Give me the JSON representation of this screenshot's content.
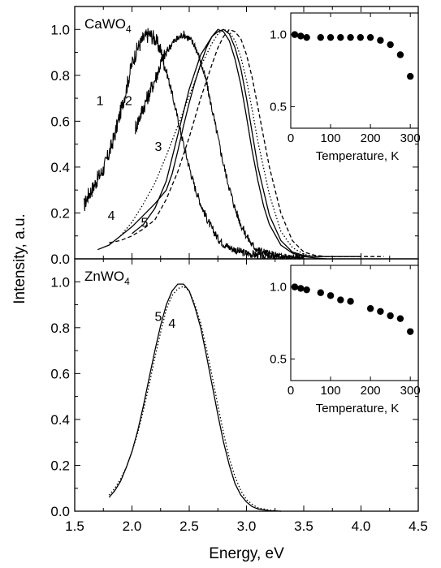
{
  "chart_data": {
    "type": "line",
    "xlabel": "Energy, eV",
    "ylabel": "Intensity, a.u.",
    "xlim": [
      1.5,
      4.5
    ],
    "x_ticks": [
      "1.5",
      "2.0",
      "2.5",
      "3.0",
      "3.5",
      "4.0",
      "4.5"
    ],
    "grid": false,
    "panels": [
      {
        "sample": "CaWO",
        "sample_sub": "4",
        "ylim": [
          0,
          1.1
        ],
        "y_ticks": [
          "0.0",
          "0.2",
          "0.4",
          "0.6",
          "0.8",
          "1.0"
        ],
        "series": [
          {
            "label": "1",
            "style": "noisy",
            "x": [
              1.58,
              1.62,
              1.66,
              1.7,
              1.75,
              1.8,
              1.85,
              1.9,
              1.95,
              2.0,
              2.05,
              2.1,
              2.15,
              2.2,
              2.25,
              2.3,
              2.35,
              2.4,
              2.45,
              2.5,
              2.55,
              2.6,
              2.65,
              2.7,
              2.75,
              2.8,
              2.85,
              2.9,
              2.95,
              3.0,
              3.1,
              3.2,
              3.3,
              3.4,
              3.5
            ],
            "y": [
              0.23,
              0.28,
              0.31,
              0.35,
              0.39,
              0.46,
              0.54,
              0.64,
              0.74,
              0.85,
              0.92,
              0.96,
              0.98,
              0.96,
              0.91,
              0.82,
              0.72,
              0.61,
              0.5,
              0.4,
              0.31,
              0.24,
              0.18,
              0.13,
              0.09,
              0.065,
              0.05,
              0.04,
              0.03,
              0.025,
              0.015,
              0.01,
              0.005,
              0.003,
              0.0
            ]
          },
          {
            "label": "2",
            "style": "noisy",
            "x": [
              2.03,
              2.06,
              2.1,
              2.15,
              2.2,
              2.25,
              2.3,
              2.35,
              2.4,
              2.45,
              2.5,
              2.55,
              2.6,
              2.65,
              2.7,
              2.75,
              2.8,
              2.85,
              2.9,
              2.95,
              3.0,
              3.05,
              3.1,
              3.2,
              3.3,
              3.4,
              3.5
            ],
            "y": [
              0.57,
              0.61,
              0.66,
              0.72,
              0.78,
              0.85,
              0.9,
              0.94,
              0.96,
              0.98,
              0.96,
              0.93,
              0.86,
              0.77,
              0.65,
              0.53,
              0.41,
              0.31,
              0.22,
              0.15,
              0.1,
              0.06,
              0.04,
              0.02,
              0.01,
              0.005,
              0.0
            ]
          },
          {
            "label": "3",
            "style": "solid",
            "x": [
              2.0,
              2.1,
              2.2,
              2.3,
              2.4,
              2.5,
              2.6,
              2.7,
              2.75,
              2.8,
              2.85,
              2.9,
              2.95,
              3.0,
              3.05,
              3.1,
              3.15,
              3.2,
              3.3,
              3.4,
              3.5,
              3.6,
              3.7
            ],
            "y": [
              0.11,
              0.15,
              0.22,
              0.34,
              0.54,
              0.74,
              0.89,
              0.97,
              1.0,
              0.99,
              0.95,
              0.87,
              0.76,
              0.62,
              0.47,
              0.34,
              0.23,
              0.15,
              0.06,
              0.025,
              0.01,
              0.004,
              0.0
            ]
          },
          {
            "label": "4",
            "style": "solid",
            "x": [
              1.7,
              1.8,
              1.9,
              2.0,
              2.1,
              2.2,
              2.25,
              2.3,
              2.35,
              2.4,
              2.45,
              2.5,
              2.55,
              2.6,
              2.65,
              2.7,
              2.75,
              2.8,
              2.85,
              2.9,
              2.95,
              3.0,
              3.05,
              3.1,
              3.2,
              3.3,
              3.4,
              3.5,
              3.6,
              3.7,
              3.8,
              3.9,
              4.0
            ],
            "y": [
              0.04,
              0.06,
              0.1,
              0.14,
              0.19,
              0.24,
              0.27,
              0.3,
              0.37,
              0.47,
              0.58,
              0.68,
              0.77,
              0.85,
              0.92,
              0.97,
              0.99,
              1.0,
              0.98,
              0.92,
              0.83,
              0.7,
              0.55,
              0.4,
              0.19,
              0.08,
              0.03,
              0.015,
              0.01,
              0.01,
              0.01,
              0.01,
              0.01
            ]
          },
          {
            "label": "5",
            "style": "dashed",
            "x": [
              1.8,
              1.9,
              2.0,
              2.1,
              2.2,
              2.3,
              2.4,
              2.5,
              2.6,
              2.7,
              2.75,
              2.8,
              2.85,
              2.9,
              2.95,
              3.0,
              3.05,
              3.1,
              3.15,
              3.2,
              3.3,
              3.4,
              3.5,
              3.6,
              3.7,
              3.8,
              4.0,
              4.2
            ],
            "y": [
              0.07,
              0.08,
              0.1,
              0.13,
              0.17,
              0.26,
              0.38,
              0.53,
              0.7,
              0.85,
              0.92,
              0.97,
              1.0,
              0.99,
              0.96,
              0.89,
              0.79,
              0.66,
              0.53,
              0.4,
              0.2,
              0.08,
              0.03,
              0.015,
              0.01,
              0.01,
              0.01,
              0.01
            ]
          },
          {
            "label": "",
            "style": "dotted",
            "x": [
              1.9,
              2.0,
              2.1,
              2.2,
              2.3,
              2.4,
              2.5,
              2.6,
              2.7,
              2.75,
              2.8,
              2.85,
              2.9,
              2.95,
              3.0,
              3.05,
              3.1,
              3.2,
              3.3,
              3.4,
              3.5,
              3.6,
              3.7,
              3.8,
              4.0
            ],
            "y": [
              0.1,
              0.16,
              0.24,
              0.33,
              0.45,
              0.58,
              0.71,
              0.84,
              0.94,
              0.98,
              1.0,
              0.99,
              0.95,
              0.88,
              0.78,
              0.65,
              0.51,
              0.28,
              0.12,
              0.05,
              0.02,
              0.01,
              0.01,
              0.01,
              0.01
            ]
          }
        ],
        "curve_labels": [
          {
            "text": "1",
            "x": 1.72,
            "y": 0.67
          },
          {
            "text": "2",
            "x": 1.97,
            "y": 0.67
          },
          {
            "text": "3",
            "x": 2.23,
            "y": 0.47
          },
          {
            "text": "4",
            "x": 1.82,
            "y": 0.17
          },
          {
            "text": "5",
            "x": 2.11,
            "y": 0.14
          }
        ],
        "inset": {
          "xlabel": "Temperature, K",
          "xlim": [
            0,
            320
          ],
          "ylim": [
            0.35,
            1.15
          ],
          "x_ticks": [
            "0",
            "100",
            "200",
            "300"
          ],
          "y_ticks": [
            "0.5",
            "1.0"
          ],
          "points": [
            {
              "x": 10,
              "y": 1.0
            },
            {
              "x": 25,
              "y": 0.99
            },
            {
              "x": 40,
              "y": 0.98
            },
            {
              "x": 75,
              "y": 0.98
            },
            {
              "x": 100,
              "y": 0.98
            },
            {
              "x": 125,
              "y": 0.98
            },
            {
              "x": 150,
              "y": 0.98
            },
            {
              "x": 175,
              "y": 0.98
            },
            {
              "x": 200,
              "y": 0.98
            },
            {
              "x": 225,
              "y": 0.96
            },
            {
              "x": 250,
              "y": 0.93
            },
            {
              "x": 275,
              "y": 0.86
            },
            {
              "x": 300,
              "y": 0.71
            }
          ]
        }
      },
      {
        "sample": "ZnWO",
        "sample_sub": "4",
        "ylim": [
          0,
          1.1
        ],
        "y_ticks": [
          "0.0",
          "0.2",
          "0.4",
          "0.6",
          "0.8",
          "1.0"
        ],
        "series": [
          {
            "label": "5",
            "style": "solid",
            "x": [
              1.8,
              1.85,
              1.9,
              1.95,
              2.0,
              2.05,
              2.1,
              2.15,
              2.2,
              2.25,
              2.3,
              2.35,
              2.4,
              2.45,
              2.5,
              2.55,
              2.6,
              2.65,
              2.7,
              2.75,
              2.8,
              2.85,
              2.9,
              2.95,
              3.0,
              3.05,
              3.1,
              3.2,
              3.3
            ],
            "y": [
              0.06,
              0.09,
              0.13,
              0.19,
              0.26,
              0.35,
              0.46,
              0.58,
              0.7,
              0.81,
              0.9,
              0.96,
              0.99,
              0.99,
              0.96,
              0.89,
              0.8,
              0.68,
              0.55,
              0.42,
              0.3,
              0.2,
              0.12,
              0.07,
              0.04,
              0.02,
              0.01,
              0.002,
              0.0
            ]
          },
          {
            "label": "4",
            "style": "dotted",
            "x": [
              1.8,
              1.85,
              1.9,
              1.95,
              2.0,
              2.05,
              2.1,
              2.15,
              2.2,
              2.25,
              2.3,
              2.35,
              2.4,
              2.45,
              2.5,
              2.55,
              2.6,
              2.65,
              2.7,
              2.75,
              2.8,
              2.85,
              2.9,
              2.95,
              3.0,
              3.05,
              3.1,
              3.2,
              3.3
            ],
            "y": [
              0.07,
              0.1,
              0.14,
              0.19,
              0.26,
              0.34,
              0.44,
              0.55,
              0.67,
              0.78,
              0.88,
              0.94,
              0.97,
              0.98,
              0.96,
              0.9,
              0.82,
              0.71,
              0.59,
              0.46,
              0.34,
              0.23,
              0.15,
              0.09,
              0.05,
              0.03,
              0.015,
              0.005,
              0.0
            ]
          }
        ],
        "curve_labels": [
          {
            "text": "5",
            "x": 2.23,
            "y": 0.83
          },
          {
            "text": "4",
            "x": 2.35,
            "y": 0.8
          }
        ],
        "inset": {
          "xlabel": "Temperature, K",
          "xlim": [
            0,
            320
          ],
          "ylim": [
            0.35,
            1.15
          ],
          "x_ticks": [
            "0",
            "100",
            "200",
            "300"
          ],
          "y_ticks": [
            "0.5",
            "1.0"
          ],
          "points": [
            {
              "x": 10,
              "y": 1.0
            },
            {
              "x": 25,
              "y": 0.99
            },
            {
              "x": 40,
              "y": 0.98
            },
            {
              "x": 75,
              "y": 0.96
            },
            {
              "x": 100,
              "y": 0.94
            },
            {
              "x": 125,
              "y": 0.91
            },
            {
              "x": 150,
              "y": 0.9
            },
            {
              "x": 200,
              "y": 0.85
            },
            {
              "x": 225,
              "y": 0.83
            },
            {
              "x": 250,
              "y": 0.8
            },
            {
              "x": 275,
              "y": 0.78
            },
            {
              "x": 300,
              "y": 0.69
            }
          ]
        }
      }
    ]
  }
}
